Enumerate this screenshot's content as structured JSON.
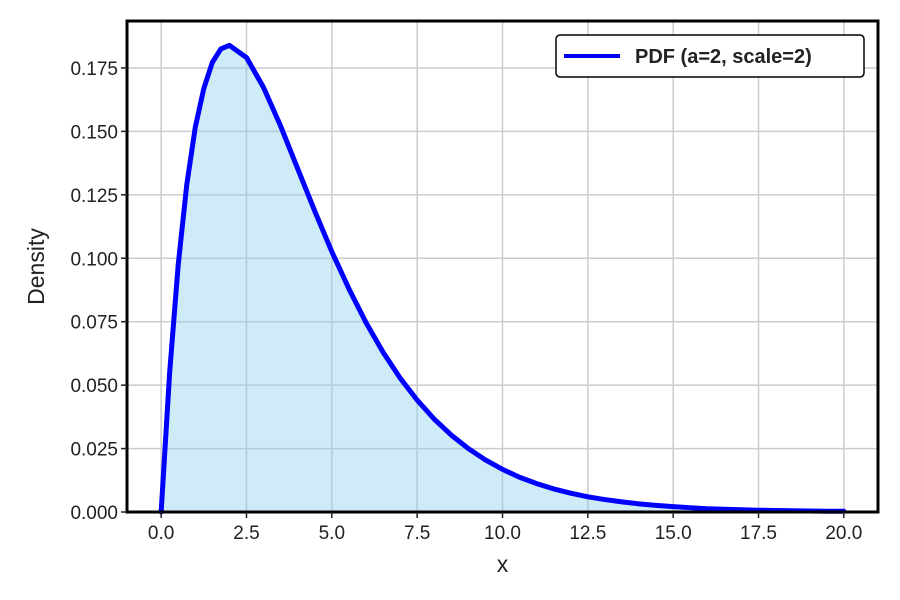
{
  "chart_data": {
    "type": "area",
    "title": "",
    "xlabel": "x",
    "ylabel": "Density",
    "xlim": [
      -1.0,
      21.0
    ],
    "ylim": [
      0.0,
      0.1935
    ],
    "xticks": [
      0.0,
      2.5,
      5.0,
      7.5,
      10.0,
      12.5,
      15.0,
      17.5,
      20.0
    ],
    "xtick_labels": [
      "0.0",
      "2.5",
      "5.0",
      "7.5",
      "10.0",
      "12.5",
      "15.0",
      "17.5",
      "20.0"
    ],
    "yticks": [
      0.0,
      0.025,
      0.05,
      0.075,
      0.1,
      0.125,
      0.15,
      0.175
    ],
    "ytick_labels": [
      "0.000",
      "0.025",
      "0.050",
      "0.075",
      "0.100",
      "0.125",
      "0.150",
      "0.175"
    ],
    "grid": true,
    "legend_position": "top-right",
    "series": [
      {
        "name": "PDF (a=2, scale=2)",
        "color": "#0000ff",
        "fill_color": "#87ceeb",
        "x": [
          0,
          0.25,
          0.5,
          0.75,
          1,
          1.25,
          1.5,
          1.75,
          2,
          2.5,
          3,
          3.5,
          4,
          4.5,
          5,
          5.5,
          6,
          6.5,
          7,
          7.5,
          8,
          8.5,
          9,
          9.5,
          10,
          10.5,
          11,
          11.5,
          12,
          12.5,
          13,
          13.5,
          14,
          14.5,
          15,
          15.5,
          16,
          16.5,
          17,
          17.5,
          18,
          18.5,
          19,
          19.5,
          20
        ],
        "y": [
          0.0,
          0.0551,
          0.0974,
          0.1289,
          0.1516,
          0.1669,
          0.1772,
          0.1825,
          0.1839,
          0.1791,
          0.1673,
          0.1521,
          0.1353,
          0.1186,
          0.1026,
          0.088,
          0.0747,
          0.063,
          0.0528,
          0.0441,
          0.0366,
          0.0303,
          0.025,
          0.0205,
          0.0168,
          0.0137,
          0.0112,
          0.0091,
          0.0074,
          0.006,
          0.0049,
          0.004,
          0.0032,
          0.0026,
          0.0021,
          0.0017,
          0.0013,
          0.0011,
          0.0009,
          0.0007,
          0.0006,
          0.0005,
          0.0004,
          0.0003,
          0.0003
        ]
      }
    ]
  }
}
